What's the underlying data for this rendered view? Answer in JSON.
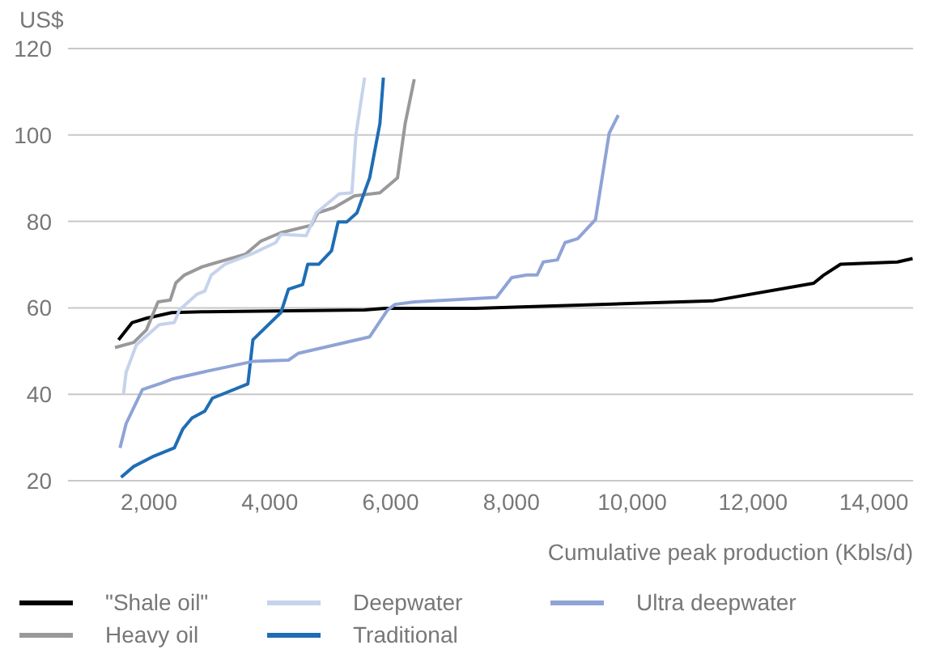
{
  "chart_data": {
    "type": "line",
    "ylabel": "US$",
    "xlabel": "Cumulative peak production (Kbls/d)",
    "xlim": [
      660,
      14650
    ],
    "xticks": [
      {
        "value": 2000,
        "label": "2,000"
      },
      {
        "value": 4000,
        "label": "4,000"
      },
      {
        "value": 6000,
        "label": "6,000"
      },
      {
        "value": 8000,
        "label": "8,000"
      },
      {
        "value": 10000,
        "label": "10,000"
      },
      {
        "value": 12000,
        "label": "12,000"
      },
      {
        "value": 14000,
        "label": "14,000"
      }
    ],
    "ylim": [
      20,
      120
    ],
    "yticks": [
      20,
      40,
      60,
      80,
      100,
      120
    ],
    "grid": "y",
    "legend": "bottom",
    "marker": "none",
    "line_style": "solid",
    "series": [
      {
        "name": "\"Shale oil\"",
        "color": "#000000",
        "x": [
          1496,
          1723,
          1958,
          2378,
          2882,
          5571,
          5906,
          7418,
          11324,
          13004,
          13172,
          13449,
          14390,
          14642
        ],
        "values": [
          52.6,
          56.6,
          57.6,
          58.9,
          59.1,
          59.5,
          59.9,
          59.9,
          61.6,
          65.7,
          67.6,
          70.1,
          70.6,
          71.4
        ]
      },
      {
        "name": "Heavy oil",
        "color": "#999999",
        "x": [
          1438,
          1748,
          1958,
          2151,
          2353,
          2446,
          2587,
          2882,
          3596,
          3848,
          4184,
          4688,
          4797,
          5066,
          5402,
          5823,
          6115,
          6241,
          6392
        ],
        "values": [
          50.8,
          52.0,
          54.9,
          61.4,
          61.8,
          65.8,
          67.6,
          69.5,
          72.4,
          75.4,
          77.4,
          79.1,
          82.0,
          83.2,
          85.9,
          86.6,
          90.1,
          102.6,
          112.9
        ]
      },
      {
        "name": "Deepwater",
        "color": "#c5d3ec",
        "x": [
          1579,
          1622,
          1791,
          2169,
          2421,
          2504,
          2799,
          2925,
          3033,
          3260,
          3721,
          4099,
          4184,
          4603,
          4772,
          5150,
          5359,
          5427,
          5571
        ],
        "values": [
          40.1,
          45.1,
          51.4,
          56.1,
          56.6,
          59.5,
          63.2,
          63.9,
          67.6,
          70.1,
          72.6,
          75.1,
          77.0,
          76.7,
          82.0,
          86.4,
          86.6,
          100.1,
          113.3
        ]
      },
      {
        "name": "Traditional",
        "color": "#1f6db5",
        "x": [
          1539,
          1748,
          2083,
          2421,
          2562,
          2713,
          2925,
          3051,
          3638,
          3721,
          4184,
          4310,
          4545,
          4629,
          4814,
          5023,
          5132,
          5276,
          5444,
          5654,
          5823,
          5881
        ],
        "values": [
          20.8,
          23.3,
          25.7,
          27.6,
          32.0,
          34.5,
          36.1,
          39.1,
          42.4,
          52.6,
          58.9,
          64.3,
          65.4,
          70.1,
          70.1,
          73.2,
          79.9,
          79.9,
          82.0,
          90.1,
          102.6,
          113.3
        ]
      },
      {
        "name": "Ultra deepwater",
        "color": "#8fa3d6",
        "x": [
          1521,
          1622,
          1892,
          2209,
          2378,
          2882,
          3721,
          4310,
          4477,
          5654,
          5949,
          6075,
          6410,
          7753,
          8006,
          8258,
          8426,
          8527,
          8762,
          8888,
          9098,
          9392,
          9619,
          9770
        ],
        "values": [
          27.6,
          33.2,
          41.1,
          42.6,
          43.5,
          45.1,
          47.6,
          47.9,
          49.5,
          53.3,
          59.5,
          60.8,
          61.4,
          62.4,
          67.0,
          67.6,
          67.6,
          70.6,
          71.1,
          75.1,
          76.0,
          80.4,
          100.4,
          104.6
        ]
      }
    ]
  }
}
